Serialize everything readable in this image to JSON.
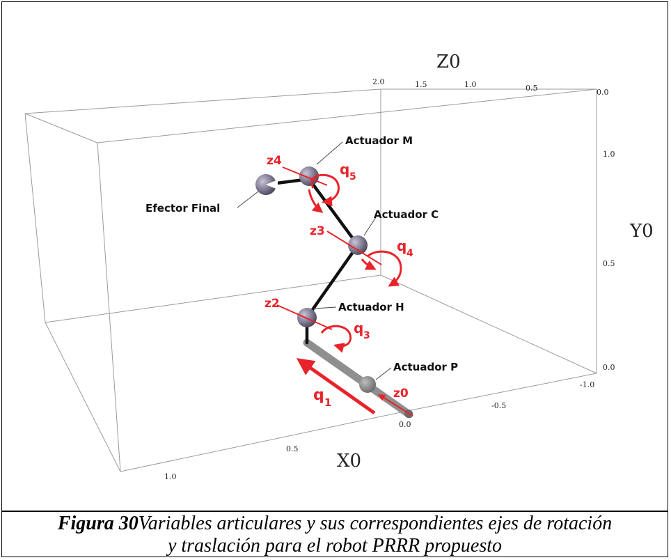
{
  "axes": {
    "z_title": "Z0",
    "y_title": "Y0",
    "x_title": "X0",
    "z_ticks": [
      "2.0",
      "1.5",
      "1.0",
      "0.5",
      "0.0"
    ],
    "y_ticks": [
      "1.0",
      "0.5",
      "0.0"
    ],
    "side_ticks": [
      "-1.0",
      "-0.5",
      "0.0"
    ],
    "x_ticks": [
      "0.5",
      "1.0"
    ]
  },
  "callouts": {
    "actuador_m": "Actuador M",
    "actuador_c": "Actuador C",
    "actuador_h": "Actuador H",
    "actuador_p": "Actuador P",
    "efector": "Efector Final"
  },
  "joint_labels": {
    "z4": "z4",
    "z3": "z3",
    "z2": "z2",
    "z0": "z0",
    "q5": "q",
    "q5_sub": "5",
    "q4": "q",
    "q4_sub": "4",
    "q3": "q",
    "q3_sub": "3",
    "q1": "q",
    "q1_sub": "1"
  },
  "caption": {
    "figure_label": "Figura 30",
    "line1": "Variables articulares y sus correspondientes ejes de rotación",
    "line2": "y traslación para el robot PRRR propuesto"
  },
  "colors": {
    "accent": "#e8232a",
    "link": "#111111",
    "joint": "#7d7890",
    "prismatic": "#8f8f8f"
  }
}
